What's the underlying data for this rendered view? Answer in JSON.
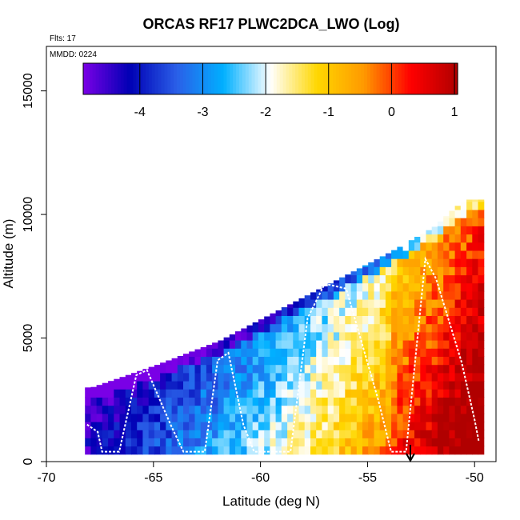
{
  "header": {
    "title": "ORCAS RF17 PLWC2DCA_LWO (Log)",
    "flts": "Flts: 17",
    "mmdd": "MMDD: 0224"
  },
  "chart_data": {
    "type": "heatmap",
    "title": "ORCAS RF17 PLWC2DCA_LWO (Log)",
    "xlabel": "Latitude (deg N)",
    "ylabel": "Altitude (m)",
    "xlim": [
      -70,
      -49
    ],
    "ylim": [
      0,
      16800
    ],
    "x_ticks": [
      -70,
      -65,
      -60,
      -55,
      -50
    ],
    "y_ticks": [
      0,
      5000,
      10000,
      15000
    ],
    "x_tick_labels": [
      "-70",
      "-65",
      "-60",
      "-55",
      "-50"
    ],
    "y_tick_labels": [
      "0",
      "5000",
      "10000",
      "15000"
    ],
    "colorbar": {
      "min": -4.9,
      "max": 1.05,
      "ticks": [
        -4,
        -3,
        -2,
        -1,
        0,
        1
      ],
      "tick_labels": [
        "-4",
        "-3",
        "-2",
        "-1",
        "0",
        "1"
      ],
      "colors": [
        "#7a00e6",
        "#0000b4",
        "#2a5fe8",
        "#00b0ff",
        "#ffffff",
        "#ffd700",
        "#ff9900",
        "#ff0000",
        "#b00000"
      ]
    },
    "envelope_top_alt_m": [
      [
        -68.0,
        3000
      ],
      [
        -65,
        3900
      ],
      [
        -62,
        4900
      ],
      [
        -60,
        5800
      ],
      [
        -58,
        6700
      ],
      [
        -56,
        7600
      ],
      [
        -54,
        8500
      ],
      [
        -52,
        9500
      ],
      [
        -51,
        10300
      ],
      [
        -50.5,
        10600
      ]
    ],
    "envelope_lat_range": [
      -68.2,
      -49.8
    ],
    "flight_track": [
      [
        -68.1,
        1500
      ],
      [
        -67.6,
        1200
      ],
      [
        -67.4,
        400
      ],
      [
        -66.6,
        400
      ],
      [
        -65.8,
        3500
      ],
      [
        -65.3,
        3700
      ],
      [
        -64.2,
        1500
      ],
      [
        -63.6,
        400
      ],
      [
        -62.6,
        400
      ],
      [
        -62.0,
        4100
      ],
      [
        -61.5,
        4400
      ],
      [
        -60.8,
        1500
      ],
      [
        -60.3,
        400
      ],
      [
        -58.6,
        400
      ],
      [
        -57.8,
        5800
      ],
      [
        -57.0,
        7200
      ],
      [
        -56.0,
        7000
      ],
      [
        -55.0,
        4000
      ],
      [
        -54.5,
        2500
      ],
      [
        -53.9,
        400
      ],
      [
        -53.2,
        400
      ],
      [
        -52.3,
        8200
      ],
      [
        -51.8,
        7400
      ],
      [
        -50.6,
        4000
      ],
      [
        -50.0,
        1700
      ],
      [
        -49.8,
        800
      ]
    ],
    "marker": {
      "type": "arrow-down",
      "lat": -53.0
    }
  }
}
